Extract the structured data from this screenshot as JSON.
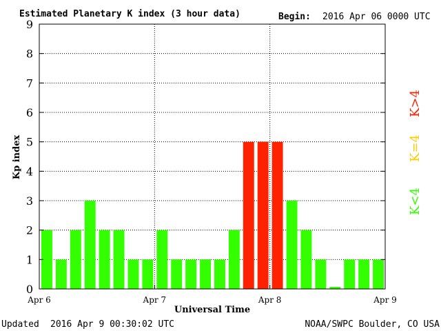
{
  "header": {
    "title": "Estimated Planetary K index (3 hour data)",
    "begin_label": "Begin:",
    "begin_value": "2016 Apr 06 0000 UTC"
  },
  "footer": {
    "updated_label": "Updated",
    "updated_value": "2016 Apr  9 00:30:02 UTC",
    "source": "NOAA/SWPC Boulder, CO USA"
  },
  "legend": {
    "items": [
      {
        "label": "K<4",
        "color": "#33ff00"
      },
      {
        "label": "K=4",
        "color": "#ffcc00"
      },
      {
        "label": "K>4",
        "color": "#ff2200"
      }
    ]
  },
  "colors": {
    "low": "#33ff00",
    "equal": "#ffcc00",
    "high": "#ff2200"
  },
  "chart_data": {
    "type": "bar",
    "title": "Estimated Planetary K index (3 hour data)",
    "xlabel": "Universal Time",
    "ylabel": "Kp index",
    "ylim": [
      0,
      9
    ],
    "yticks": [
      0,
      1,
      2,
      3,
      4,
      5,
      6,
      7,
      8,
      9
    ],
    "xticks": [
      "Apr 6",
      "Apr 7",
      "Apr 8",
      "Apr 9"
    ],
    "grid": true,
    "categories": [
      "Apr 6 00",
      "Apr 6 03",
      "Apr 6 06",
      "Apr 6 09",
      "Apr 6 12",
      "Apr 6 15",
      "Apr 6 18",
      "Apr 6 21",
      "Apr 7 00",
      "Apr 7 03",
      "Apr 7 06",
      "Apr 7 09",
      "Apr 7 12",
      "Apr 7 15",
      "Apr 7 18",
      "Apr 7 21",
      "Apr 8 00",
      "Apr 8 03",
      "Apr 8 06",
      "Apr 8 09",
      "Apr 8 12",
      "Apr 8 15",
      "Apr 8 18",
      "Apr 8 21"
    ],
    "values": [
      2,
      1,
      2,
      3,
      2,
      2,
      1,
      1,
      2,
      1,
      1,
      1,
      1,
      2,
      5,
      5,
      5,
      3,
      2,
      1,
      0.07,
      1,
      1,
      1
    ]
  }
}
